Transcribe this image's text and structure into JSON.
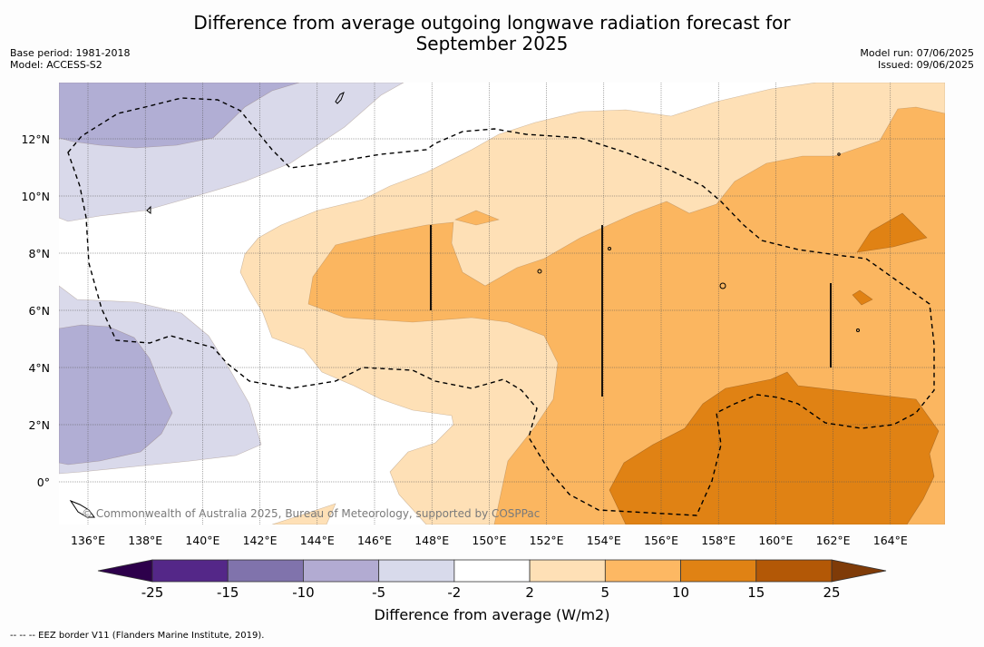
{
  "title": {
    "line1": "Difference from average outgoing longwave radiation forecast for",
    "line2": "September 2025"
  },
  "meta": {
    "base_period": "Base period: 1981-2018",
    "model": "Model: ACCESS-S2",
    "model_run": "Model run: 07/06/2025",
    "issued": "Issued: 09/06/2025"
  },
  "map": {
    "lon_labels": [
      "136°E",
      "138°E",
      "140°E",
      "142°E",
      "144°E",
      "146°E",
      "148°E",
      "150°E",
      "152°E",
      "154°E",
      "156°E",
      "158°E",
      "160°E",
      "162°E",
      "164°E"
    ],
    "lat_labels": [
      "12°N",
      "10°N",
      "8°N",
      "6°N",
      "4°N",
      "2°N",
      "0°"
    ],
    "copyright": "© Commonwealth of Australia 2025, Bureau of Meteorology, supported by COSPPac",
    "colors": {
      "land_bg": "#ffffff",
      "neg10_neg5": "#b1aed4",
      "neg5_neg2": "#d9d9ea",
      "pos2_5": "#fee0b6",
      "pos5_10": "#fbb660",
      "pos10_15": "#e08214",
      "eez_line": "#000000"
    }
  },
  "colorbar": {
    "tick_labels": [
      "-25",
      "-15",
      "-10",
      "-5",
      "-2",
      "2",
      "5",
      "10",
      "15",
      "25"
    ],
    "colors": [
      "#542788",
      "#8073ac",
      "#b2abd2",
      "#d8daeb",
      "#ffffff",
      "#fee0b6",
      "#fdb863",
      "#e08214",
      "#b35806"
    ],
    "extend_low_color": "#2d004b",
    "extend_high_color": "#7f3b08",
    "label": "Difference from average (W/m2)"
  },
  "footnote": "--  --  -- EEZ border V11 (Flanders Marine Institute, 2019)."
}
